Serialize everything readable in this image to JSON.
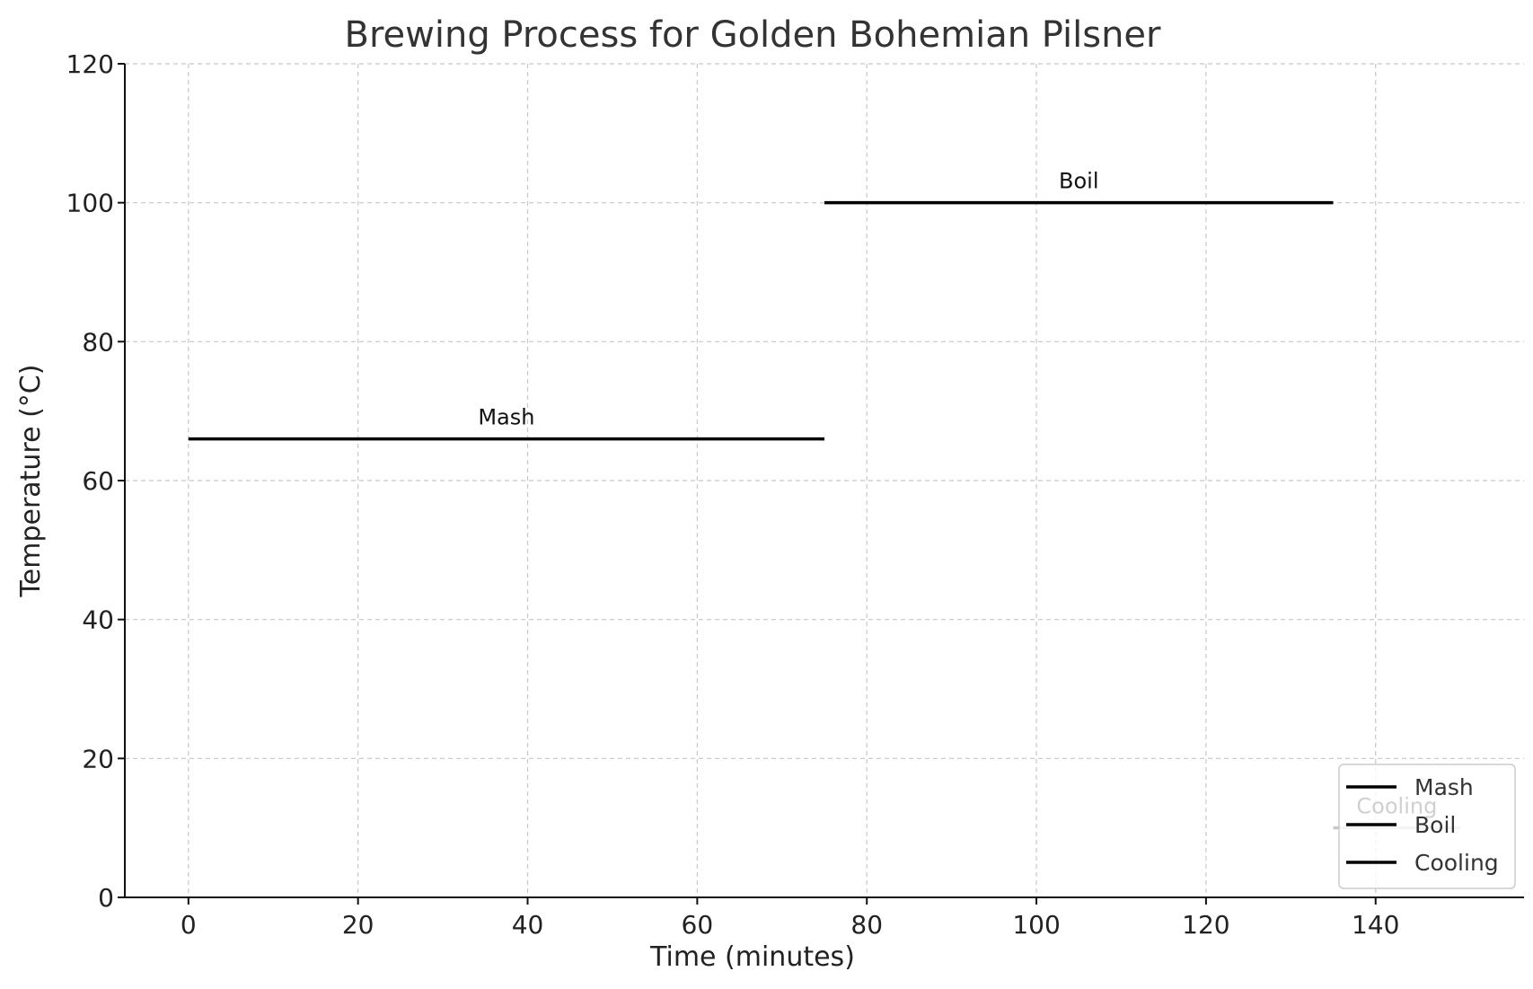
{
  "chart_data": {
    "type": "line",
    "title": "Brewing Process for Golden Bohemian Pilsner",
    "xlabel": "Time (minutes)",
    "ylabel": "Temperature (°C)",
    "xlim": [
      -7.5,
      157.5
    ],
    "ylim": [
      0,
      120
    ],
    "xticks": [
      0,
      20,
      40,
      60,
      80,
      100,
      120,
      140
    ],
    "yticks": [
      0,
      20,
      40,
      60,
      80,
      100,
      120
    ],
    "grid": true,
    "legend_position": "lower-right",
    "series": [
      {
        "name": "Mash",
        "x": [
          0,
          75
        ],
        "y": [
          66,
          66
        ],
        "color": "#000000",
        "annotation": "Mash"
      },
      {
        "name": "Boil",
        "x": [
          75,
          135
        ],
        "y": [
          100,
          100
        ],
        "color": "#000000",
        "annotation": "Boil"
      },
      {
        "name": "Cooling",
        "x": [
          135,
          150
        ],
        "y": [
          10,
          10
        ],
        "color": "#c8c8c8",
        "annotation": "Cooling",
        "annotation_color": "#c8c8c8"
      }
    ]
  }
}
